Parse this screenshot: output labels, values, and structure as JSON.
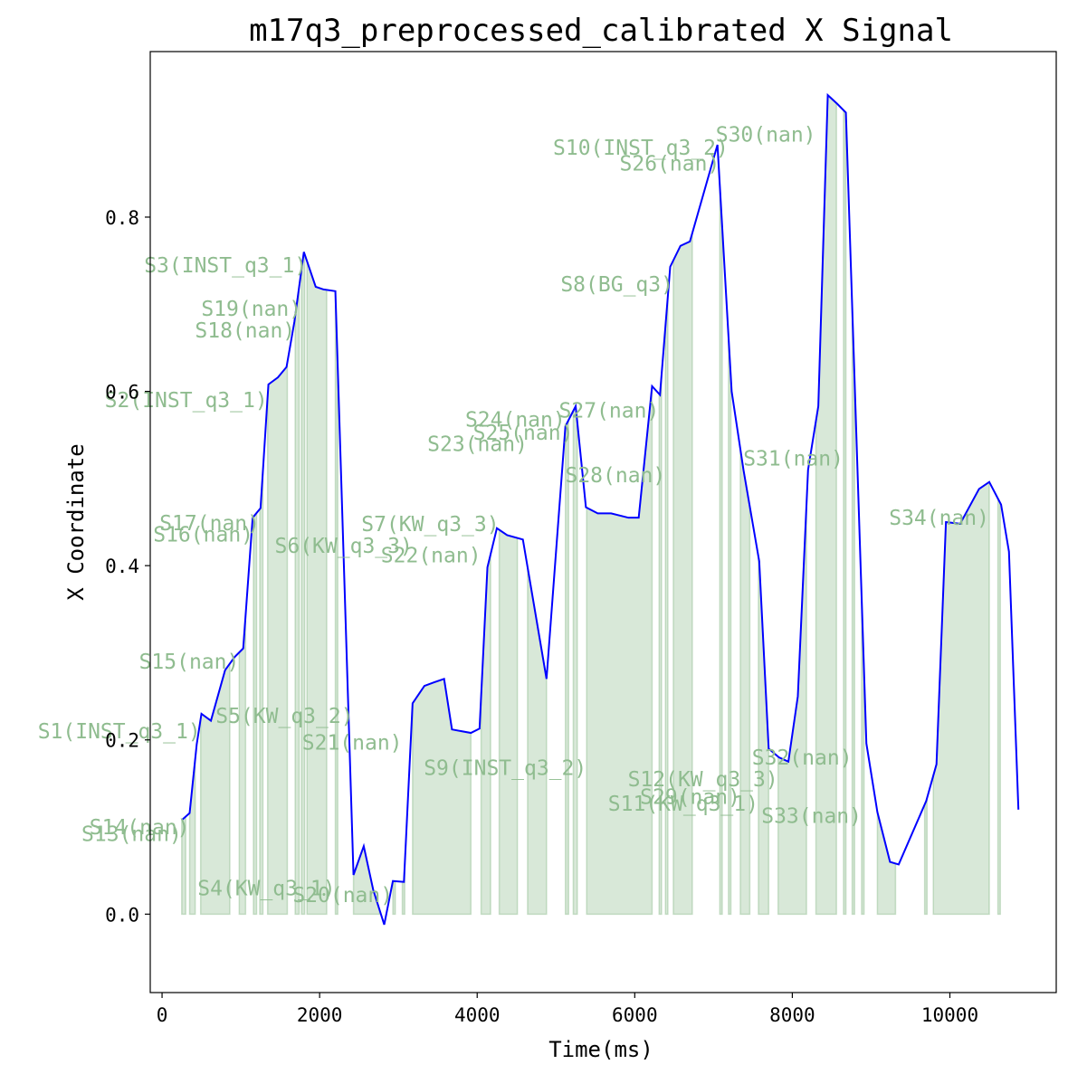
{
  "chart_data": {
    "type": "line",
    "title": "m17q3_preprocessed_calibrated X Signal",
    "xlabel": "Time(ms)",
    "ylabel": "X Coordinate",
    "xlim": [
      -150,
      11350
    ],
    "ylim": [
      -0.09,
      0.99
    ],
    "xticks": [
      0,
      2000,
      4000,
      6000,
      8000,
      10000
    ],
    "xtick_labels": [
      "0",
      "2000",
      "4000",
      "6000",
      "8000",
      "10000"
    ],
    "yticks": [
      0.0,
      0.2,
      0.4,
      0.6,
      0.8
    ],
    "ytick_labels": [
      "0.0",
      "0.2",
      "0.4",
      "0.6",
      "0.8"
    ],
    "grid": false,
    "colors": {
      "line": "#0000ff",
      "fill": "#8fbc8f",
      "label": "#8fbc8f"
    },
    "series": [
      {
        "x": [
          250,
          350,
          440,
          500,
          620,
          800,
          920,
          1030,
          1150,
          1250,
          1350,
          1470,
          1580,
          1680,
          1800,
          1950,
          2050,
          2200,
          2430,
          2560,
          2680,
          2820,
          2930,
          3070,
          3180,
          3330,
          3450,
          3580,
          3680,
          3800,
          3920,
          4030,
          4130,
          4250,
          4380,
          4580,
          4880,
          5120,
          5250,
          5380,
          5530,
          5700,
          5920,
          6050,
          6220,
          6320,
          6450,
          6580,
          6700,
          7050,
          7230,
          7380,
          7580,
          7700,
          7830,
          7950,
          8070,
          8200,
          8330,
          8450,
          8570,
          8680,
          8940,
          9080,
          9240,
          9350,
          9700,
          9830,
          9950,
          10130,
          10370,
          10500,
          10650,
          10750,
          10870
        ],
        "y": [
          0.108,
          0.116,
          0.195,
          0.23,
          0.222,
          0.28,
          0.295,
          0.305,
          0.455,
          0.466,
          0.608,
          0.616,
          0.628,
          0.68,
          0.76,
          0.72,
          0.717,
          0.715,
          0.045,
          0.078,
          0.028,
          -0.012,
          0.038,
          0.037,
          0.242,
          0.262,
          0.266,
          0.27,
          0.212,
          0.21,
          0.208,
          0.213,
          0.398,
          0.443,
          0.435,
          0.43,
          0.27,
          0.56,
          0.583,
          0.467,
          0.46,
          0.46,
          0.455,
          0.455,
          0.606,
          0.596,
          0.743,
          0.767,
          0.772,
          0.883,
          0.6,
          0.51,
          0.405,
          0.19,
          0.18,
          0.175,
          0.25,
          0.51,
          0.583,
          0.94,
          0.93,
          0.92,
          0.196,
          0.117,
          0.06,
          0.057,
          0.13,
          0.172,
          0.45,
          0.448,
          0.488,
          0.496,
          0.47,
          0.416,
          0.12
        ]
      }
    ],
    "segments": [
      {
        "start": 250,
        "end": 300,
        "label": "S13(nan)"
      },
      {
        "start": 350,
        "end": 420,
        "label": "S14(nan)"
      },
      {
        "start": 490,
        "end": 860,
        "label": "S1(INST_q3_1)"
      },
      {
        "start": 980,
        "end": 1060,
        "label": "S15(nan)"
      },
      {
        "start": 1160,
        "end": 1200,
        "label": "S16(nan)"
      },
      {
        "start": 1240,
        "end": 1280,
        "label": "S17(nan)"
      },
      {
        "start": 1340,
        "end": 1590,
        "label": "S2(INST_q3_1)"
      },
      {
        "start": 1690,
        "end": 1740,
        "label": "S18(nan)"
      },
      {
        "start": 1770,
        "end": 1810,
        "label": "S19(nan)"
      },
      {
        "start": 1840,
        "end": 2090,
        "label": "S3(INST_q3_1)"
      },
      {
        "start": 2200,
        "end": 2230,
        "label": "S4(KW_q3_1)"
      },
      {
        "start": 2430,
        "end": 2760,
        "label": "S5(KW_q3_2)"
      },
      {
        "start": 2930,
        "end": 2960,
        "label": "S20(nan)"
      },
      {
        "start": 3050,
        "end": 3080,
        "label": "S21(nan)"
      },
      {
        "start": 3180,
        "end": 3920,
        "label": "S6(KW_q3_3)"
      },
      {
        "start": 4050,
        "end": 4170,
        "label": "S22(nan)"
      },
      {
        "start": 4280,
        "end": 4510,
        "label": "S7(KW_q3_3)"
      },
      {
        "start": 4640,
        "end": 4880,
        "label": "S23(nan)"
      },
      {
        "start": 5120,
        "end": 5160,
        "label": "S24(nan)"
      },
      {
        "start": 5220,
        "end": 5270,
        "label": "S25(nan)"
      },
      {
        "start": 5390,
        "end": 6220,
        "label": "S9(INST_q3_2)"
      },
      {
        "start": 6310,
        "end": 6340,
        "label": "S27(nan)"
      },
      {
        "start": 6390,
        "end": 6420,
        "label": "S28(nan)"
      },
      {
        "start": 6490,
        "end": 6730,
        "label": "S8(BG_q3)"
      },
      {
        "start": 7080,
        "end": 7110,
        "label": "S26(nan)"
      },
      {
        "start": 7190,
        "end": 7220,
        "label": "S10(INST_q3_2)"
      },
      {
        "start": 7340,
        "end": 7460,
        "label": "S29(nan)"
      },
      {
        "start": 7570,
        "end": 7700,
        "label": "S11(KW_q3_1)"
      },
      {
        "start": 7820,
        "end": 8180,
        "label": "S12(KW_q3_3)"
      },
      {
        "start": 8300,
        "end": 8560,
        "label": "S30(nan)"
      },
      {
        "start": 8650,
        "end": 8680,
        "label": "S31(nan)"
      },
      {
        "start": 8760,
        "end": 8790,
        "label": "S32(nan)"
      },
      {
        "start": 8880,
        "end": 8910,
        "label": "S33(nan)"
      },
      {
        "start": 9080,
        "end": 9310,
        "label": "S34(nan)"
      },
      {
        "start": 9680,
        "end": 9710,
        "label": ""
      },
      {
        "start": 9790,
        "end": 10500,
        "label": ""
      },
      {
        "start": 10610,
        "end": 10640,
        "label": ""
      }
    ],
    "annotations": [
      {
        "text": "S1(INST_q3_1)",
        "x": 490,
        "y": 0.21
      },
      {
        "text": "S2(INST_q3_1)",
        "x": 1340,
        "y": 0.59
      },
      {
        "text": "S3(INST_q3_1)",
        "x": 1840,
        "y": 0.745
      },
      {
        "text": "S4(KW_q3_1)",
        "x": 2200,
        "y": 0.03
      },
      {
        "text": "S5(KW_q3_2)",
        "x": 2430,
        "y": 0.228
      },
      {
        "text": "S6(KW_q3_3)",
        "x": 3180,
        "y": 0.423
      },
      {
        "text": "S7(KW_q3_3)",
        "x": 4280,
        "y": 0.448
      },
      {
        "text": "S8(BG_q3)",
        "x": 6490,
        "y": 0.723
      },
      {
        "text": "S9(INST_q3_2)",
        "x": 5390,
        "y": 0.168
      },
      {
        "text": "S10(INST_q3_2)",
        "x": 7190,
        "y": 0.88
      },
      {
        "text": "S11(KW_q3_1)",
        "x": 7570,
        "y": 0.127
      },
      {
        "text": "S12(KW_q3_3)",
        "x": 7820,
        "y": 0.155
      },
      {
        "text": "S13(nan)",
        "x": 250,
        "y": 0.092
      },
      {
        "text": "S14(nan)",
        "x": 350,
        "y": 0.1
      },
      {
        "text": "S15(nan)",
        "x": 980,
        "y": 0.29
      },
      {
        "text": "S16(nan)",
        "x": 1160,
        "y": 0.436
      },
      {
        "text": "S17(nan)",
        "x": 1240,
        "y": 0.449
      },
      {
        "text": "S18(nan)",
        "x": 1690,
        "y": 0.67
      },
      {
        "text": "S19(nan)",
        "x": 1770,
        "y": 0.695
      },
      {
        "text": "S20(nan)",
        "x": 2930,
        "y": 0.022
      },
      {
        "text": "S21(nan)",
        "x": 3050,
        "y": 0.197
      },
      {
        "text": "S22(nan)",
        "x": 4050,
        "y": 0.412
      },
      {
        "text": "S23(nan)",
        "x": 4640,
        "y": 0.54
      },
      {
        "text": "S24(nan)",
        "x": 5120,
        "y": 0.568
      },
      {
        "text": "S25(nan)",
        "x": 5220,
        "y": 0.553
      },
      {
        "text": "S26(nan)",
        "x": 7080,
        "y": 0.862
      },
      {
        "text": "S27(nan)",
        "x": 6310,
        "y": 0.578
      },
      {
        "text": "S28(nan)",
        "x": 6390,
        "y": 0.504
      },
      {
        "text": "S29(nan)",
        "x": 7340,
        "y": 0.135
      },
      {
        "text": "S30(nan)",
        "x": 8300,
        "y": 0.895
      },
      {
        "text": "S31(nan)",
        "x": 8650,
        "y": 0.523
      },
      {
        "text": "S32(nan)",
        "x": 8760,
        "y": 0.18
      },
      {
        "text": "S33(nan)",
        "x": 8880,
        "y": 0.113
      },
      {
        "text": "S34(nan)",
        "x": 10500,
        "y": 0.455
      }
    ]
  }
}
